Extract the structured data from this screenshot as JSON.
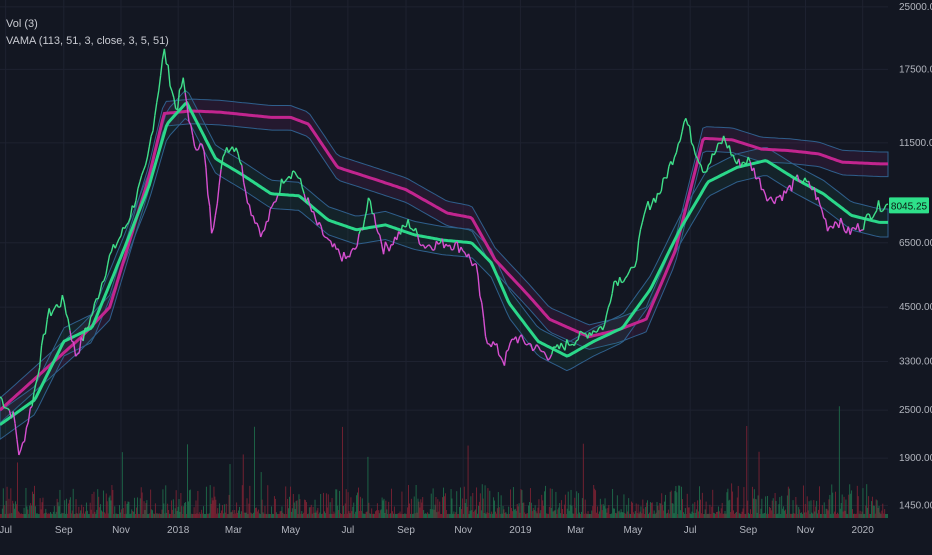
{
  "legend": {
    "volume_indicator": "Vol (3)",
    "vama_indicator": "VAMA (113, 51, 3, close, 3, 5, 51)"
  },
  "colors": {
    "background": "#131722",
    "bull": "#3fe08a",
    "bear": "#d64fd0",
    "vama_fast": "#2bd88a",
    "vama_slow": "#c2258f",
    "band": "#2f5f8c",
    "volume_bull": "#1e6b4a",
    "volume_bear": "#7a2233",
    "grid": "#1e2230",
    "price_tag": "#2ee08a"
  },
  "chart_data": {
    "type": "line",
    "title": "",
    "y_scale": "log",
    "ylim": [
      1350,
      26000
    ],
    "y_ticks": [
      "25000.00",
      "17500.00",
      "11500.00",
      "6500.00",
      "4500.00",
      "3300.00",
      "2500.00",
      "1900.00",
      "1450.00"
    ],
    "y_tick_values": [
      25000,
      17500,
      11500,
      6500,
      4500,
      3300,
      2500,
      1900,
      1450
    ],
    "x_range": [
      "2017-06-25",
      "2020-01-28"
    ],
    "x_ticks": [
      {
        "label": "Jul",
        "date": "2017-07-01"
      },
      {
        "label": "Sep",
        "date": "2017-09-01"
      },
      {
        "label": "Nov",
        "date": "2017-11-01"
      },
      {
        "label": "2018",
        "date": "2018-01-01"
      },
      {
        "label": "Mar",
        "date": "2018-03-01"
      },
      {
        "label": "May",
        "date": "2018-05-01"
      },
      {
        "label": "Jul",
        "date": "2018-07-01"
      },
      {
        "label": "Sep",
        "date": "2018-09-01"
      },
      {
        "label": "Nov",
        "date": "2018-11-01"
      },
      {
        "label": "2019",
        "date": "2019-01-01"
      },
      {
        "label": "Mar",
        "date": "2019-03-01"
      },
      {
        "label": "May",
        "date": "2019-05-01"
      },
      {
        "label": "Jul",
        "date": "2019-07-01"
      },
      {
        "label": "Sep",
        "date": "2019-09-01"
      },
      {
        "label": "Nov",
        "date": "2019-11-01"
      },
      {
        "label": "2020",
        "date": "2020-01-01"
      }
    ],
    "last_price_label": "8045.25",
    "last_price": 8045.25,
    "series": [
      {
        "role": "price",
        "x": [
          "2017-06-25",
          "2017-07-10",
          "2017-07-16",
          "2017-08-01",
          "2017-08-15",
          "2017-09-01",
          "2017-09-14",
          "2017-10-01",
          "2017-10-20",
          "2017-11-08",
          "2017-11-28",
          "2017-12-08",
          "2017-12-17",
          "2017-12-30",
          "2018-01-06",
          "2018-01-17",
          "2018-01-28",
          "2018-02-06",
          "2018-02-20",
          "2018-03-05",
          "2018-03-18",
          "2018-04-01",
          "2018-04-24",
          "2018-05-06",
          "2018-05-28",
          "2018-06-12",
          "2018-06-29",
          "2018-07-10",
          "2018-07-24",
          "2018-08-08",
          "2018-08-14",
          "2018-09-04",
          "2018-09-20",
          "2018-10-15",
          "2018-11-01",
          "2018-11-15",
          "2018-11-25",
          "2018-12-05",
          "2018-12-15",
          "2018-12-25",
          "2019-01-10",
          "2019-01-30",
          "2019-02-20",
          "2019-03-15",
          "2019-04-01",
          "2019-04-10",
          "2019-05-01",
          "2019-05-15",
          "2019-05-30",
          "2019-06-15",
          "2019-06-26",
          "2019-07-05",
          "2019-07-16",
          "2019-08-06",
          "2019-08-20",
          "2019-09-01",
          "2019-09-24",
          "2019-10-10",
          "2019-10-25",
          "2019-11-10",
          "2019-11-25",
          "2019-12-05",
          "2019-12-17",
          "2020-01-01",
          "2020-01-10",
          "2020-01-19"
        ],
        "values": [
          2700,
          2400,
          1900,
          2800,
          4300,
          4700,
          3400,
          4300,
          6000,
          7300,
          10000,
          14000,
          19500,
          13800,
          16500,
          11500,
          11200,
          6900,
          11200,
          11300,
          8000,
          6800,
          9500,
          9800,
          7300,
          6400,
          5900,
          6300,
          8300,
          6300,
          6400,
          7300,
          6400,
          6500,
          6300,
          5600,
          3800,
          3600,
          3300,
          3800,
          3650,
          3420,
          3650,
          3900,
          4050,
          5200,
          5500,
          7900,
          8700,
          10900,
          13300,
          11300,
          9800,
          11800,
          10200,
          10400,
          8300,
          8600,
          9400,
          8800,
          7100,
          7400,
          6900,
          7200,
          7700,
          8045
        ]
      },
      {
        "role": "vama_fast",
        "x": [
          "2017-06-25",
          "2017-08-01",
          "2017-09-01",
          "2017-10-01",
          "2017-11-01",
          "2017-12-01",
          "2017-12-20",
          "2018-01-10",
          "2018-02-10",
          "2018-03-10",
          "2018-04-10",
          "2018-05-10",
          "2018-06-10",
          "2018-07-10",
          "2018-08-10",
          "2018-09-10",
          "2018-10-10",
          "2018-11-10",
          "2018-12-01",
          "2018-12-20",
          "2019-01-20",
          "2019-02-20",
          "2019-03-20",
          "2019-04-20",
          "2019-05-20",
          "2019-06-20",
          "2019-07-20",
          "2019-08-20",
          "2019-09-20",
          "2019-10-20",
          "2019-11-20",
          "2019-12-20",
          "2020-01-19"
        ],
        "values": [
          2300,
          2650,
          3700,
          4000,
          6000,
          9000,
          12800,
          14500,
          10500,
          9600,
          8600,
          8500,
          7400,
          7000,
          7200,
          6800,
          6600,
          6500,
          5800,
          4600,
          3700,
          3400,
          3700,
          4000,
          5000,
          7000,
          9200,
          10000,
          10400,
          9400,
          8600,
          7600,
          7300
        ]
      },
      {
        "role": "vama_slow",
        "x": [
          "2017-06-25",
          "2017-09-20",
          "2017-10-20",
          "2017-12-01",
          "2017-12-17",
          "2018-01-15",
          "2018-02-15",
          "2018-04-10",
          "2018-05-01",
          "2018-05-20",
          "2018-06-20",
          "2018-08-01",
          "2018-09-01",
          "2018-10-15",
          "2018-11-10",
          "2018-12-05",
          "2019-01-10",
          "2019-02-01",
          "2019-03-15",
          "2019-04-15",
          "2019-05-15",
          "2019-06-15",
          "2019-07-15",
          "2019-08-15",
          "2019-09-15",
          "2019-10-15",
          "2019-11-15",
          "2019-12-10",
          "2020-01-19"
        ],
        "values": [
          2500,
          3800,
          4500,
          9500,
          13600,
          13800,
          13700,
          13300,
          13300,
          12800,
          10000,
          9300,
          8800,
          7700,
          7500,
          5900,
          4800,
          4200,
          3800,
          3950,
          4200,
          6200,
          11800,
          11700,
          11100,
          11000,
          10800,
          10300,
          10200
        ]
      }
    ],
    "volume": {
      "bars": 940,
      "scale_note": "relative volume"
    }
  }
}
